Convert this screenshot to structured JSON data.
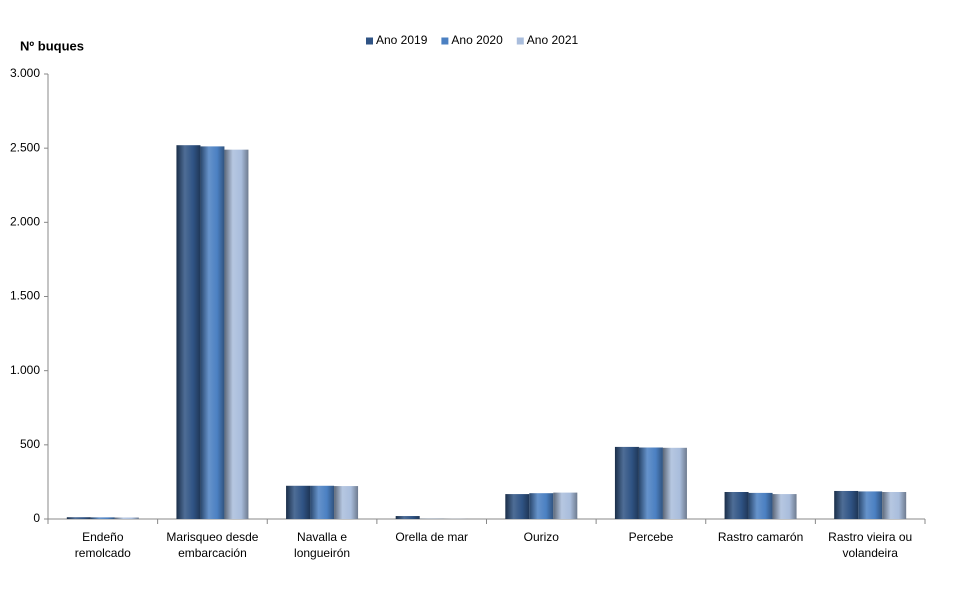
{
  "chart_data": {
    "type": "bar",
    "y_axis_label": "Nº  buques",
    "categories": [
      "Endeño remolcado",
      "Marisqueo desde embarcación",
      "Navalla e longueirón",
      "Orella de mar",
      "Ourizo",
      "Percebe",
      "Rastro camarón",
      "Rastro vieira ou volandeira"
    ],
    "series": [
      {
        "name": "Ano 2019",
        "color": "#2f5384",
        "values": [
          12,
          2520,
          224,
          20,
          168,
          486,
          182,
          189
        ]
      },
      {
        "name": "Ano 2020",
        "color": "#4b80c2",
        "values": [
          11,
          2512,
          224,
          1,
          174,
          482,
          176,
          186
        ]
      },
      {
        "name": "Ano 2021",
        "color": "#a9bddc",
        "values": [
          10,
          2490,
          222,
          1,
          178,
          480,
          168,
          182
        ]
      }
    ],
    "ylim": [
      0,
      3000
    ],
    "yticks": [
      0,
      500,
      {
        "value": 1000,
        "label": "1.000"
      },
      {
        "value": 1500,
        "label": "1.500"
      },
      {
        "value": 2000,
        "label": "2.000"
      },
      {
        "value": 2500,
        "label": "2.500"
      },
      {
        "value": 3000,
        "label": "3.000"
      }
    ],
    "legend": "top"
  }
}
